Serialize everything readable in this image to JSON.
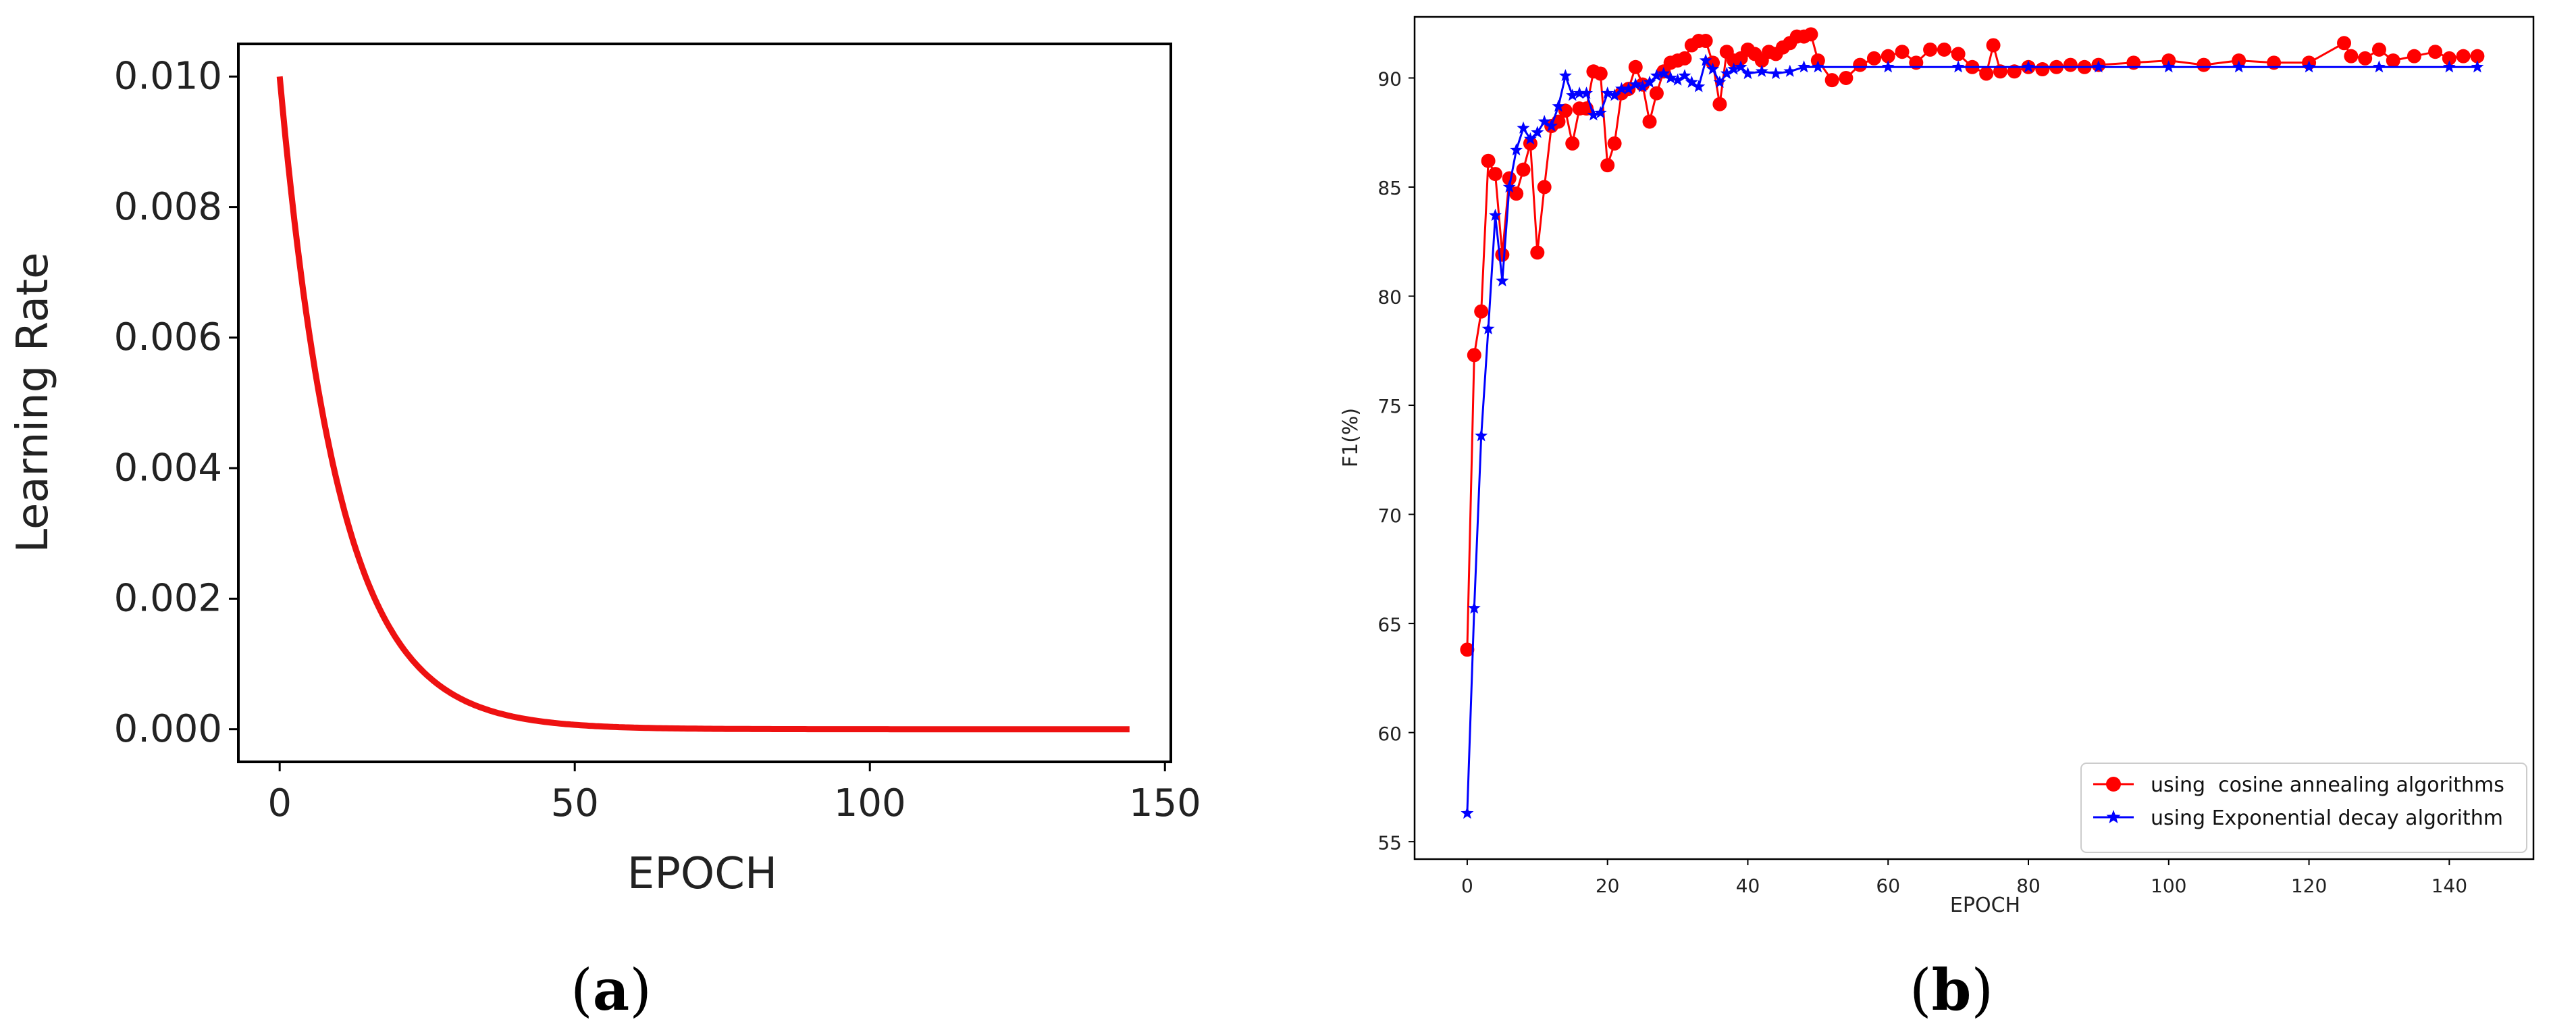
{
  "chart_data": [
    {
      "id": "a",
      "type": "line",
      "panel_label": "a",
      "xlabel": "EPOCH",
      "ylabel": "Learning Rate",
      "xlim": [
        -7,
        151
      ],
      "ylim": [
        -0.0005,
        0.0105
      ],
      "xticks": [
        0,
        50,
        100,
        150
      ],
      "xtick_labels": [
        "0",
        "50",
        "100",
        "150"
      ],
      "yticks": [
        0.0,
        0.002,
        0.004,
        0.006,
        0.008,
        0.01
      ],
      "ytick_labels": [
        "0.000",
        "0.002",
        "0.004",
        "0.006",
        "0.008",
        "0.010"
      ],
      "grid": false,
      "series": [
        {
          "color": "#ee1111",
          "x": [
            0,
            5,
            10,
            15,
            20,
            25,
            30,
            35,
            40,
            45,
            50,
            60,
            70,
            80,
            90,
            100,
            110,
            120,
            130,
            140,
            144
          ],
          "y": [
            0.01,
            0.00607,
            0.00368,
            0.00223,
            0.00135,
            0.00082,
            0.0005,
            0.0003,
            0.00018,
            0.00011,
            7e-05,
            2e-05,
            1e-05,
            0.0,
            0.0,
            0.0,
            0.0,
            0.0,
            0.0,
            0.0,
            0.0
          ]
        }
      ]
    },
    {
      "id": "b",
      "type": "line",
      "panel_label": "b",
      "xlabel": "EPOCH",
      "ylabel": "F1(%)",
      "xlim": [
        -7.5,
        152
      ],
      "ylim": [
        54.2,
        92.8
      ],
      "xticks": [
        0,
        20,
        40,
        60,
        80,
        100,
        120,
        140
      ],
      "xtick_labels": [
        "0",
        "20",
        "40",
        "60",
        "80",
        "100",
        "120",
        "140"
      ],
      "yticks": [
        55,
        60,
        65,
        70,
        75,
        80,
        85,
        90
      ],
      "ytick_labels": [
        "55",
        "60",
        "65",
        "70",
        "75",
        "80",
        "85",
        "90"
      ],
      "grid": false,
      "legend_position": "lower-right",
      "series": [
        {
          "name": "using  cosine annealing algorithms",
          "color": "#ff0000",
          "marker": "circle",
          "x": [
            0,
            1,
            2,
            3,
            4,
            5,
            6,
            7,
            8,
            9,
            10,
            11,
            12,
            13,
            14,
            15,
            16,
            17,
            18,
            19,
            20,
            21,
            22,
            23,
            24,
            25,
            26,
            27,
            28,
            29,
            30,
            31,
            32,
            33,
            34,
            35,
            36,
            37,
            38,
            39,
            40,
            41,
            42,
            43,
            44,
            45,
            46,
            47,
            48,
            49,
            50,
            52,
            54,
            56,
            58,
            60,
            62,
            64,
            66,
            68,
            70,
            72,
            74,
            75,
            76,
            78,
            80,
            82,
            84,
            86,
            88,
            90,
            95,
            100,
            105,
            110,
            115,
            120,
            125,
            126,
            128,
            130,
            132,
            135,
            138,
            140,
            142,
            144
          ],
          "y": [
            63.8,
            77.3,
            79.3,
            86.2,
            85.6,
            81.9,
            85.4,
            84.7,
            85.8,
            87.0,
            82.0,
            85.0,
            87.8,
            88.0,
            88.5,
            87.0,
            88.6,
            88.6,
            90.3,
            90.2,
            86.0,
            87.0,
            89.3,
            89.5,
            90.5,
            89.7,
            88.0,
            89.3,
            90.3,
            90.7,
            90.8,
            90.9,
            91.5,
            91.7,
            91.7,
            90.7,
            88.8,
            91.2,
            90.8,
            90.9,
            91.3,
            91.1,
            90.8,
            91.2,
            91.1,
            91.4,
            91.6,
            91.9,
            91.9,
            92.0,
            90.8,
            89.9,
            90.0,
            90.6,
            90.9,
            91.0,
            91.2,
            90.7,
            91.3,
            91.3,
            91.1,
            90.5,
            90.2,
            91.5,
            90.3,
            90.3,
            90.5,
            90.4,
            90.5,
            90.6,
            90.5,
            90.6,
            90.7,
            90.8,
            90.6,
            90.8,
            90.7,
            90.7,
            91.6,
            91.0,
            90.9,
            91.3,
            90.8,
            91.0,
            91.2,
            90.9,
            91.0,
            91.0
          ]
        },
        {
          "name": "using Exponential decay algorithm",
          "color": "#0000ff",
          "marker": "star",
          "x": [
            0,
            1,
            2,
            3,
            4,
            5,
            6,
            7,
            8,
            9,
            10,
            11,
            12,
            13,
            14,
            15,
            16,
            17,
            18,
            19,
            20,
            21,
            22,
            23,
            24,
            25,
            26,
            27,
            28,
            29,
            30,
            31,
            32,
            33,
            34,
            35,
            36,
            37,
            38,
            39,
            40,
            42,
            44,
            46,
            48,
            50,
            60,
            70,
            80,
            90,
            100,
            110,
            120,
            130,
            140,
            144
          ],
          "y": [
            56.3,
            65.7,
            73.6,
            78.5,
            83.7,
            80.7,
            85.0,
            86.7,
            87.7,
            87.2,
            87.5,
            88.0,
            87.8,
            88.7,
            90.1,
            89.2,
            89.3,
            89.3,
            88.3,
            88.4,
            89.3,
            89.2,
            89.5,
            89.5,
            89.7,
            89.6,
            89.8,
            90.1,
            90.2,
            90.0,
            89.9,
            90.1,
            89.8,
            89.6,
            90.8,
            90.4,
            89.8,
            90.2,
            90.4,
            90.5,
            90.2,
            90.3,
            90.2,
            90.3,
            90.5,
            90.5,
            90.5,
            90.5,
            90.5,
            90.5,
            90.5,
            90.5,
            90.5,
            90.5,
            90.5,
            90.5
          ]
        }
      ]
    }
  ]
}
